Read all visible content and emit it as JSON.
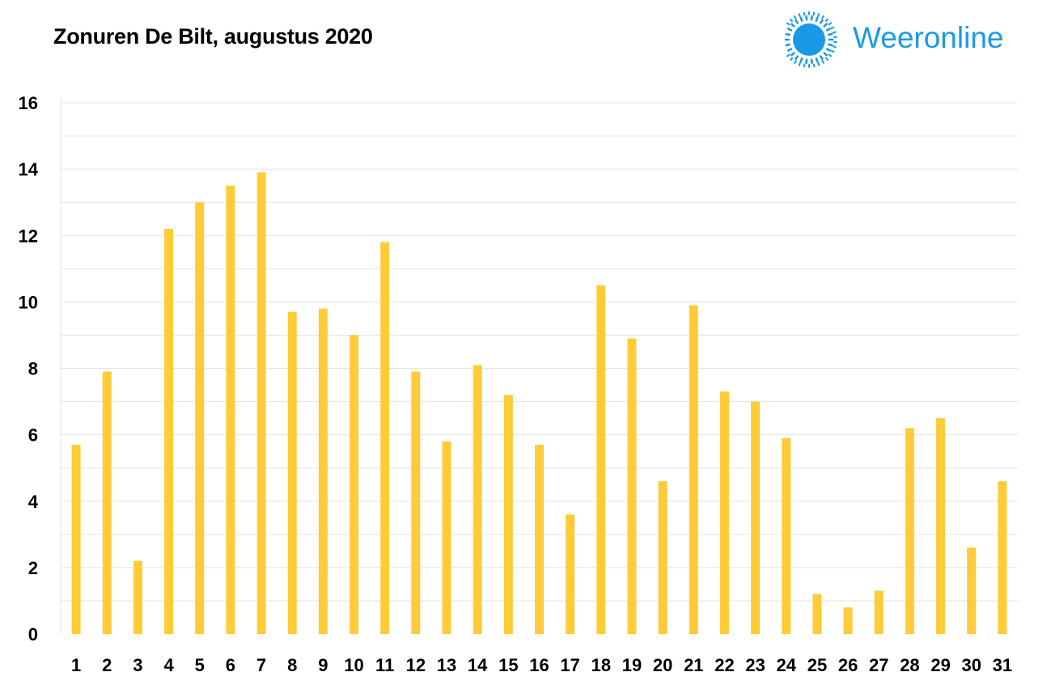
{
  "chart_data": {
    "type": "bar",
    "title": "Zonuren De Bilt, augustus 2020",
    "xlabel": "",
    "ylabel": "",
    "categories": [
      "1",
      "2",
      "3",
      "4",
      "5",
      "6",
      "7",
      "8",
      "9",
      "10",
      "11",
      "12",
      "13",
      "14",
      "15",
      "16",
      "17",
      "18",
      "19",
      "20",
      "21",
      "22",
      "23",
      "24",
      "25",
      "26",
      "27",
      "28",
      "29",
      "30",
      "31"
    ],
    "values": [
      5.7,
      7.9,
      2.2,
      12.2,
      13.0,
      13.5,
      13.9,
      9.7,
      9.8,
      9.0,
      11.8,
      7.9,
      5.8,
      8.1,
      7.2,
      5.7,
      3.6,
      10.5,
      8.9,
      4.6,
      9.9,
      7.3,
      7.0,
      5.9,
      1.2,
      0.8,
      1.3,
      6.2,
      6.5,
      2.6,
      4.6
    ],
    "ylim": [
      0,
      16
    ],
    "yticks": [
      0,
      2,
      4,
      6,
      8,
      10,
      12,
      14,
      16
    ],
    "grid": true,
    "legend": "none",
    "bar_color": "#ffcb36",
    "grid_color": "#e3e3e3"
  },
  "brand": {
    "name": "Weeronline",
    "color": "#1a9ae6"
  }
}
